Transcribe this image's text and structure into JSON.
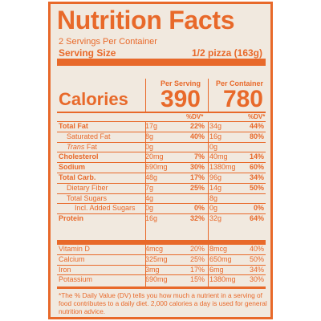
{
  "label": {
    "title": "Nutrition Facts",
    "servings_per_container": "2 Servings Per Container",
    "serving_size_label": "Serving Size",
    "serving_size_value": "1/2 pizza (163g)",
    "calories_label": "Calories",
    "per_serving_label": "Per Serving",
    "per_container_label": "Per Container",
    "calories_per_serving": "390",
    "calories_per_container": "780",
    "dv_header": "%DV*",
    "accent_color": "#e8692a",
    "background_color": "#f1e9df"
  },
  "nutrients": [
    {
      "name": "Total Fat",
      "style": "bold",
      "serving": "17g",
      "serving_dv": "22%",
      "container": "34g",
      "container_dv": "44%"
    },
    {
      "name": "Saturated Fat",
      "style": "indent1",
      "serving": "8g",
      "serving_dv": "40%",
      "container": "16g",
      "container_dv": "80%"
    },
    {
      "name_prefix": "Trans",
      "name": " Fat",
      "style": "indent1-italic",
      "serving": "0g",
      "serving_dv": "",
      "container": "0g",
      "container_dv": ""
    },
    {
      "name": "Cholesterol",
      "style": "bold",
      "serving": "20mg",
      "serving_dv": "7%",
      "container": "40mg",
      "container_dv": "14%"
    },
    {
      "name": "Sodium",
      "style": "bold",
      "serving": "690mg",
      "serving_dv": "30%",
      "container": "1380mg",
      "container_dv": "60%"
    },
    {
      "name": "Total Carb.",
      "style": "bold",
      "serving": "48g",
      "serving_dv": "17%",
      "container": "96g",
      "container_dv": "34%"
    },
    {
      "name": "Dietary Fiber",
      "style": "indent1",
      "serving": "7g",
      "serving_dv": "25%",
      "container": "14g",
      "container_dv": "50%"
    },
    {
      "name": "Total Sugars",
      "style": "indent1",
      "serving": "4g",
      "serving_dv": "",
      "container": "8g",
      "container_dv": ""
    },
    {
      "name": "Incl. Added Sugars",
      "style": "indent2",
      "serving": "0g",
      "serving_dv": "0%",
      "container": "0g",
      "container_dv": "0%"
    },
    {
      "name": "Protein",
      "style": "bold",
      "serving": "16g",
      "serving_dv": "32%",
      "container": "32g",
      "container_dv": "64%"
    }
  ],
  "vitamins": [
    {
      "name": "Vitamin D",
      "serving": "4mcg",
      "serving_dv": "20%",
      "container": "8mcg",
      "container_dv": "40%"
    },
    {
      "name": "Calcium",
      "serving": "325mg",
      "serving_dv": "25%",
      "container": "650mg",
      "container_dv": "50%"
    },
    {
      "name": "Iron",
      "serving": "3mg",
      "serving_dv": "17%",
      "container": "6mg",
      "container_dv": "34%"
    },
    {
      "name": "Potassium",
      "serving": "690mg",
      "serving_dv": "15%",
      "container": "1380mg",
      "container_dv": "30%"
    }
  ],
  "footnote": "*The % Daily Value (DV) tells you how much a nutrient in a serving of food contributes to a daily diet. 2,000 calories a day is used for general nutrition advice."
}
